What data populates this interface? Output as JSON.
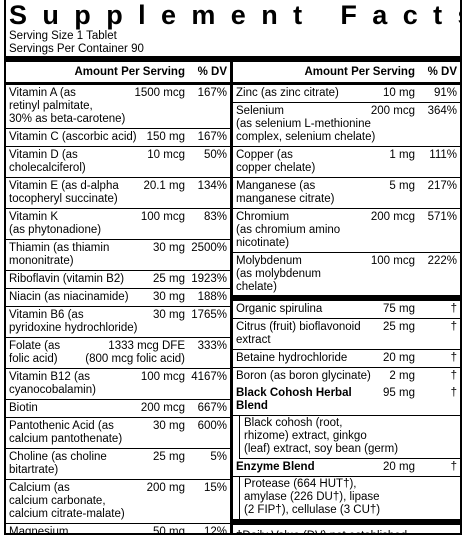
{
  "header": {
    "title": "Supplement Facts",
    "serving_size": "Serving Size 1 Tablet",
    "servings_per_container": "Servings Per Container 90"
  },
  "left": {
    "amount_header": "Amount Per Serving",
    "dv_header": "% DV",
    "rows": [
      {
        "name": "Vitamin A (as\nretinyl palmitate,\n30% as beta-carotene)",
        "amount": "1500 mcg",
        "dv": "167%"
      },
      {
        "name": "Vitamin C (ascorbic acid)",
        "amount": "150 mg",
        "dv": "167%"
      },
      {
        "name": "Vitamin D (as\ncholecalciferol)",
        "amount": "10 mcg",
        "dv": "50%"
      },
      {
        "name": "Vitamin E (as d-alpha\ntocopheryl succinate)",
        "amount": "20.1 mg",
        "dv": "134%"
      },
      {
        "name": "Vitamin K\n(as phytonadione)",
        "amount": "100 mcg",
        "dv": "83%"
      },
      {
        "name": "Thiamin (as thiamin\nmononitrate)",
        "amount": "30 mg",
        "dv": "2500%"
      },
      {
        "name": "Riboflavin (vitamin B2)",
        "amount": "25 mg",
        "dv": "1923%"
      },
      {
        "name": "Niacin (as niacinamide)",
        "amount": "30 mg",
        "dv": "188%"
      },
      {
        "name": "Vitamin B6 (as\npyridoxine hydrochloride)",
        "amount": "30 mg",
        "dv": "1765%"
      },
      {
        "name": "Folate (as\nfolic acid)",
        "amount": "1333 mcg DFE\n(800 mcg folic acid)",
        "dv": "333%"
      },
      {
        "name": "Vitamin B12 (as\ncyanocobalamin)",
        "amount": "100 mcg",
        "dv": "4167%"
      },
      {
        "name": "Biotin",
        "amount": "200 mcg",
        "dv": "667%"
      },
      {
        "name": "Pantothenic Acid (as\ncalcium pantothenate)",
        "amount": "30 mg",
        "dv": "600%"
      },
      {
        "name": "Choline (as choline bitartrate)",
        "amount": "25 mg",
        "dv": "5%"
      },
      {
        "name": "Calcium (as\ncalcium carbonate,\ncalcium citrate-malate)",
        "amount": "200 mg",
        "dv": "15%"
      },
      {
        "name": "Magnesium\n(as magnesium oxide)",
        "amount": "50 mg",
        "dv": "12%"
      }
    ]
  },
  "right": {
    "amount_header": "Amount Per Serving",
    "dv_header": "% DV",
    "rows": [
      {
        "name": "Zinc (as zinc citrate)",
        "amount": "10 mg",
        "dv": "91%"
      },
      {
        "name": "Selenium\n(as selenium L-methionine\ncomplex, selenium chelate)",
        "amount": "200 mcg",
        "dv": "364%"
      },
      {
        "name": "Copper (as\ncopper chelate)",
        "amount": "1 mg",
        "dv": "111%"
      },
      {
        "name": "Manganese (as\nmanganese citrate)",
        "amount": "5 mg",
        "dv": "217%"
      },
      {
        "name": "Chromium\n(as chromium amino\nnicotinate)",
        "amount": "200 mcg",
        "dv": "571%"
      },
      {
        "name": "Molybdenum\n(as molybdenum\nchelate)",
        "amount": "100 mcg",
        "dv": "222%"
      }
    ],
    "other_rows": [
      {
        "name": "Organic spirulina",
        "amount": "75 mg",
        "dv": "†"
      },
      {
        "name": "Citrus (fruit) bioflavonoid\nextract",
        "amount": "25 mg",
        "dv": "†"
      },
      {
        "name": "Betaine hydrochloride",
        "amount": "20 mg",
        "dv": "†"
      },
      {
        "name": "Boron (as boron glycinate)",
        "amount": "2 mg",
        "dv": "†"
      }
    ],
    "blends": [
      {
        "name": "Black Cohosh Herbal Blend",
        "amount": "95 mg",
        "dv": "†",
        "description": "Black cohosh (root,\nrhizome) extract, ginkgo\n(leaf) extract, soy bean (germ)"
      },
      {
        "name": "Enzyme Blend",
        "amount": "20 mg",
        "dv": "†",
        "description": "Protease (664 HUT†),\namylase (226 DU†), lipase\n(2 FIP†), cellulase (3 CU†)"
      }
    ],
    "footnote": "†Daily Value (DV) not established."
  }
}
